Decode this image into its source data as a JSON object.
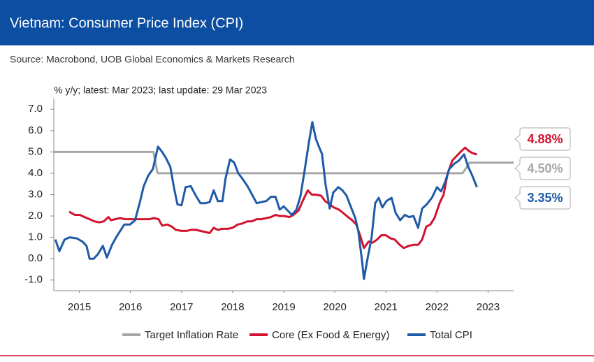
{
  "header": {
    "title": "Vietnam: Consumer Price Index (CPI)",
    "source": "Source: Macrobond, UOB Global Economics & Markets Research"
  },
  "chart_data": {
    "type": "line",
    "subtitle": "% y/y; latest: Mar 2023; last update: 29 Mar 2023",
    "xlim": [
      2015,
      2024
    ],
    "xticks": [
      {
        "value": 2015.5,
        "label": "2015"
      },
      {
        "value": 2016.5,
        "label": "2016"
      },
      {
        "value": 2017.5,
        "label": "2017"
      },
      {
        "value": 2018.5,
        "label": "2018"
      },
      {
        "value": 2019.5,
        "label": "2019"
      },
      {
        "value": 2020.5,
        "label": "2020"
      },
      {
        "value": 2021.5,
        "label": "2021"
      },
      {
        "value": 2022.5,
        "label": "2022"
      },
      {
        "value": 2023.5,
        "label": "2023"
      }
    ],
    "ylim": [
      -1.5,
      7.5
    ],
    "yticks": [
      {
        "value": -1,
        "label": "-1.0"
      },
      {
        "value": 0,
        "label": "0.0"
      },
      {
        "value": 1,
        "label": "1.0"
      },
      {
        "value": 2,
        "label": "2.0"
      },
      {
        "value": 3,
        "label": "3.0"
      },
      {
        "value": 4,
        "label": "4.0"
      },
      {
        "value": 5,
        "label": "5.0"
      },
      {
        "value": 6,
        "label": "6.0"
      },
      {
        "value": 7,
        "label": "7.0"
      }
    ],
    "grid": false,
    "legend": "bottom",
    "series": [
      {
        "name": "Target Inflation Rate",
        "color": "#a6a6a6",
        "end_label": "4.50%",
        "x": [
          2015.0,
          2016.95,
          2017.03,
          2023.0,
          2023.14,
          2024.0
        ],
        "values": [
          5.0,
          5.0,
          4.0,
          4.0,
          4.5,
          4.5
        ]
      },
      {
        "name": "Core (Ex Food & Energy)",
        "color": "#d2122e",
        "end_label": "4.88%",
        "x": [
          2015.3,
          2015.41,
          2015.51,
          2015.6,
          2015.7,
          2015.79,
          2015.89,
          2015.98,
          2016.07,
          2016.12,
          2016.2,
          2016.3,
          2016.4,
          2016.49,
          2016.59,
          2016.68,
          2016.78,
          2016.87,
          2016.96,
          2017.05,
          2017.12,
          2017.22,
          2017.31,
          2017.39,
          2017.5,
          2017.6,
          2017.68,
          2017.78,
          2017.87,
          2017.97,
          2018.05,
          2018.13,
          2018.21,
          2018.3,
          2018.41,
          2018.5,
          2018.6,
          2018.69,
          2018.79,
          2018.88,
          2018.97,
          2019.06,
          2019.16,
          2019.25,
          2019.34,
          2019.42,
          2019.51,
          2019.61,
          2019.69,
          2019.79,
          2019.87,
          2019.97,
          2020.05,
          2020.13,
          2020.23,
          2020.31,
          2020.4,
          2020.48,
          2020.58,
          2020.66,
          2020.76,
          2020.84,
          2020.92,
          2021.0,
          2021.07,
          2021.16,
          2021.24,
          2021.33,
          2021.41,
          2021.5,
          2021.59,
          2021.67,
          2021.77,
          2021.85,
          2021.95,
          2022.04,
          2022.13,
          2022.21,
          2022.29,
          2022.37,
          2022.45,
          2022.55,
          2022.63,
          2022.71,
          2022.8,
          2022.88,
          2022.96,
          2023.05,
          2023.12,
          2023.19,
          2023.28
        ],
        "values": [
          2.2,
          2.05,
          2.05,
          1.95,
          1.85,
          1.75,
          1.7,
          1.75,
          1.95,
          1.8,
          1.85,
          1.9,
          1.85,
          1.85,
          1.85,
          1.85,
          1.85,
          1.85,
          1.9,
          1.85,
          1.55,
          1.6,
          1.5,
          1.35,
          1.3,
          1.3,
          1.35,
          1.35,
          1.3,
          1.25,
          1.2,
          1.45,
          1.35,
          1.4,
          1.4,
          1.45,
          1.6,
          1.65,
          1.75,
          1.75,
          1.85,
          1.85,
          1.9,
          1.95,
          2.05,
          2.0,
          2.0,
          1.95,
          2.05,
          2.25,
          2.7,
          3.2,
          3.0,
          3.0,
          2.95,
          2.7,
          2.55,
          2.4,
          2.3,
          2.15,
          1.95,
          1.8,
          1.6,
          1.05,
          0.5,
          0.8,
          0.75,
          0.9,
          1.1,
          1.1,
          0.95,
          0.9,
          0.65,
          0.5,
          0.6,
          0.65,
          0.65,
          0.9,
          1.5,
          1.6,
          1.9,
          2.6,
          3.0,
          4.0,
          4.6,
          4.8,
          5.0,
          5.2,
          5.05,
          4.95,
          4.88
        ]
      },
      {
        "name": "Total CPI",
        "color": "#1f5aa6",
        "end_label": "3.35%",
        "x": [
          2015.03,
          2015.11,
          2015.21,
          2015.31,
          2015.45,
          2015.56,
          2015.64,
          2015.7,
          2015.78,
          2015.86,
          2015.96,
          2016.04,
          2016.14,
          2016.22,
          2016.3,
          2016.38,
          2016.49,
          2016.59,
          2016.68,
          2016.76,
          2016.85,
          2016.94,
          2017.04,
          2017.12,
          2017.2,
          2017.28,
          2017.35,
          2017.42,
          2017.5,
          2017.58,
          2017.68,
          2017.78,
          2017.87,
          2017.97,
          2018.05,
          2018.13,
          2018.21,
          2018.3,
          2018.36,
          2018.45,
          2018.53,
          2018.61,
          2018.69,
          2018.79,
          2018.88,
          2018.97,
          2019.06,
          2019.16,
          2019.25,
          2019.34,
          2019.42,
          2019.5,
          2019.58,
          2019.66,
          2019.75,
          2019.83,
          2019.91,
          2019.99,
          2020.06,
          2020.13,
          2020.18,
          2020.25,
          2020.32,
          2020.4,
          2020.47,
          2020.57,
          2020.65,
          2020.73,
          2020.81,
          2020.9,
          2020.96,
          2021.03,
          2021.07,
          2021.14,
          2021.22,
          2021.29,
          2021.36,
          2021.43,
          2021.51,
          2021.61,
          2021.69,
          2021.78,
          2021.87,
          2021.95,
          2022.04,
          2022.13,
          2022.21,
          2022.3,
          2022.4,
          2022.5,
          2022.58,
          2022.66,
          2022.74,
          2022.84,
          2022.93,
          2023.03,
          2023.11,
          2023.19,
          2023.28
        ],
        "values": [
          0.9,
          0.35,
          0.9,
          1.0,
          0.95,
          0.8,
          0.6,
          0.0,
          0.0,
          0.2,
          0.6,
          0.05,
          0.65,
          1.0,
          1.3,
          1.6,
          1.6,
          1.8,
          2.6,
          3.4,
          3.9,
          4.2,
          5.25,
          5.0,
          4.7,
          4.3,
          3.35,
          2.55,
          2.5,
          3.35,
          3.4,
          2.95,
          2.6,
          2.6,
          2.65,
          3.2,
          2.7,
          2.7,
          3.75,
          4.65,
          4.5,
          4.0,
          3.75,
          3.4,
          3.0,
          2.6,
          2.65,
          2.7,
          2.9,
          2.9,
          2.3,
          2.45,
          2.25,
          2.05,
          2.3,
          2.95,
          4.15,
          5.4,
          6.4,
          5.6,
          5.3,
          4.9,
          3.45,
          2.35,
          3.1,
          3.35,
          3.2,
          2.95,
          2.45,
          1.9,
          1.3,
          -0.05,
          -0.95,
          0.0,
          1.0,
          2.6,
          2.85,
          2.4,
          2.7,
          2.85,
          2.15,
          1.8,
          2.05,
          1.95,
          2.0,
          1.45,
          2.35,
          2.55,
          2.85,
          3.35,
          3.15,
          3.6,
          4.2,
          4.45,
          4.6,
          4.89,
          4.31,
          3.89,
          3.35
        ]
      }
    ]
  }
}
